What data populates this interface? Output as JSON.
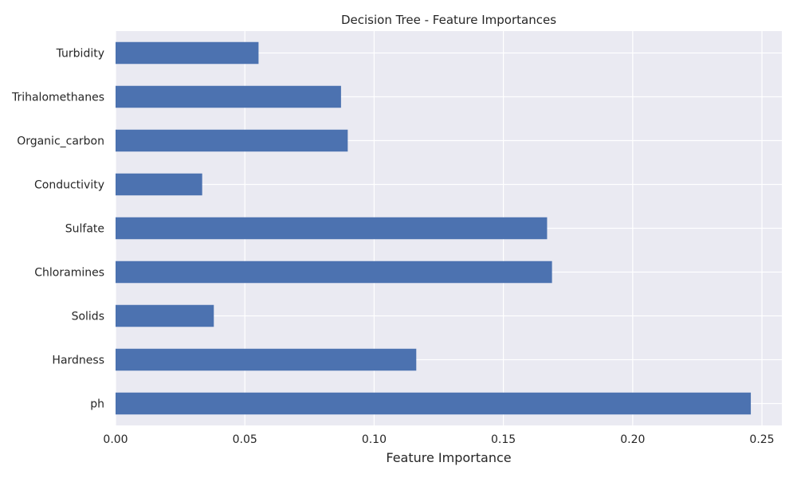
{
  "chart_data": {
    "type": "bar",
    "orientation": "horizontal",
    "title": "Decision Tree - Feature Importances",
    "xlabel": "Feature Importance",
    "ylabel": "",
    "categories": [
      "ph",
      "Hardness",
      "Solids",
      "Chloramines",
      "Sulfate",
      "Conductivity",
      "Organic_carbon",
      "Trihalomethanes",
      "Turbidity"
    ],
    "values": [
      0.2457,
      0.1163,
      0.038,
      0.1688,
      0.1669,
      0.0335,
      0.0898,
      0.0872,
      0.0553
    ],
    "xlim": [
      0,
      0.2577
    ],
    "xticks": [
      0.0,
      0.05,
      0.1,
      0.15,
      0.2,
      0.25
    ],
    "xtick_labels": [
      "0.00",
      "0.05",
      "0.10",
      "0.15",
      "0.20",
      "0.25"
    ],
    "grid": true,
    "legend": "none",
    "colors": {
      "bar": "#4c72b0",
      "plot_background": "#eaeaf2",
      "grid": "#ffffff",
      "text": "#262626"
    }
  }
}
